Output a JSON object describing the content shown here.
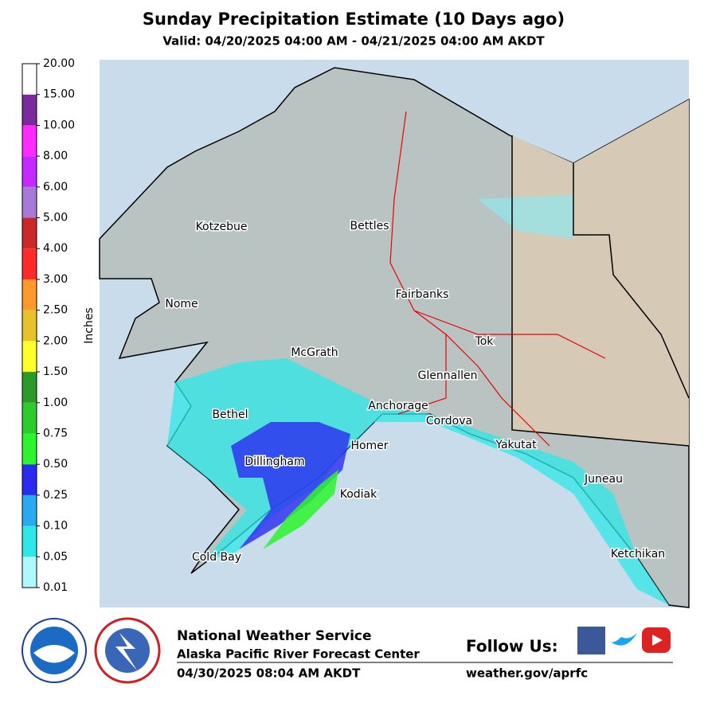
{
  "header": {
    "title": "Sunday Precipitation Estimate (10 Days ago)",
    "subtitle": "Valid: 04/20/2025 04:00 AM - 04/21/2025 04:00 AM AKDT"
  },
  "legend": {
    "title": "Inches",
    "ticks": [
      "0.01",
      "0.05",
      "0.10",
      "0.25",
      "0.50",
      "0.75",
      "1.00",
      "1.50",
      "2.00",
      "2.50",
      "3.00",
      "4.00",
      "5.00",
      "6.00",
      "8.00",
      "10.00",
      "15.00",
      "20.00"
    ],
    "colors": [
      "#b0f8ff",
      "#2ee8e8",
      "#29aaf0",
      "#2b2bf0",
      "#2df52d",
      "#2ccc2c",
      "#2a9a2a",
      "#ffff2a",
      "#e8c22a",
      "#ff9a2a",
      "#ff2a2a",
      "#c82a2a",
      "#a87ad8",
      "#c42aff",
      "#ff2aff",
      "#7a2a9a",
      "#ffffff"
    ]
  },
  "map": {
    "places": [
      "Kotzebue",
      "Bettles",
      "Nome",
      "Fairbanks",
      "McGrath",
      "Tok",
      "Glennallen",
      "Anchorage",
      "Bethel",
      "Cordova",
      "Homer",
      "Yakutat",
      "Dillingham",
      "Kodiak",
      "Juneau",
      "Cold Bay",
      "Ketchikan"
    ]
  },
  "footer": {
    "org": "National Weather Service",
    "center": "Alaska Pacific River Forecast Center",
    "issued": "04/30/2025 08:04 AM AKDT",
    "follow": "Follow Us:",
    "url": "weather.gov/aprfc"
  }
}
